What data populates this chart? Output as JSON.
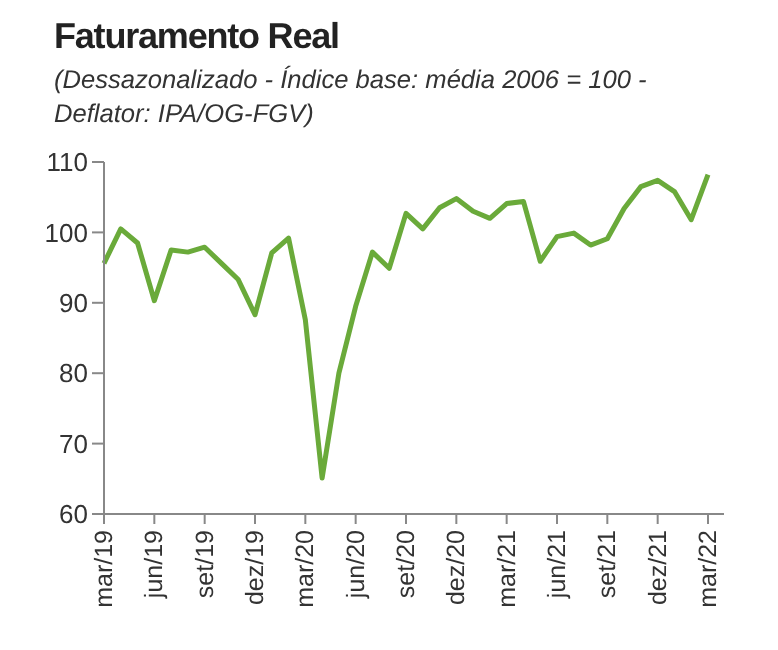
{
  "chart_data": {
    "type": "line",
    "title": "Faturamento Real",
    "subtitle": "(Dessazonalizado - Índice base: média 2006 = 100 - Deflator: IPA/OG-FGV)",
    "categories": [
      "mar/19",
      null,
      null,
      "jun/19",
      null,
      null,
      "set/19",
      null,
      null,
      "dez/19",
      null,
      null,
      "mar/20",
      null,
      null,
      "jun/20",
      null,
      null,
      "set/20",
      null,
      null,
      "dez/20",
      null,
      null,
      "mar/21",
      null,
      null,
      "jun/21",
      null,
      null,
      "set/21",
      null,
      null,
      "dez/21",
      null,
      null,
      "mar/22"
    ],
    "series": [
      {
        "color": "#6aaa3a",
        "values": [
          95.6,
          100.5,
          98.5,
          90.3,
          97.5,
          97.2,
          97.9,
          95.6,
          93.3,
          88.3,
          97.1,
          99.2,
          87.6,
          65.1,
          80,
          89.5,
          97.2,
          94.9,
          102.7,
          100.5,
          103.5,
          104.8,
          103.0,
          102.0,
          104.1,
          104.4,
          95.9,
          99.4,
          99.9,
          98.2,
          99.1,
          103.4,
          106.5,
          107.4,
          105.8,
          101.8,
          108.2
        ]
      }
    ],
    "ylim": [
      60,
      110
    ],
    "yticks": [
      60,
      70,
      80,
      90,
      100,
      110
    ],
    "grid": false,
    "legend": false,
    "marker": "none",
    "line_style": "solid"
  }
}
